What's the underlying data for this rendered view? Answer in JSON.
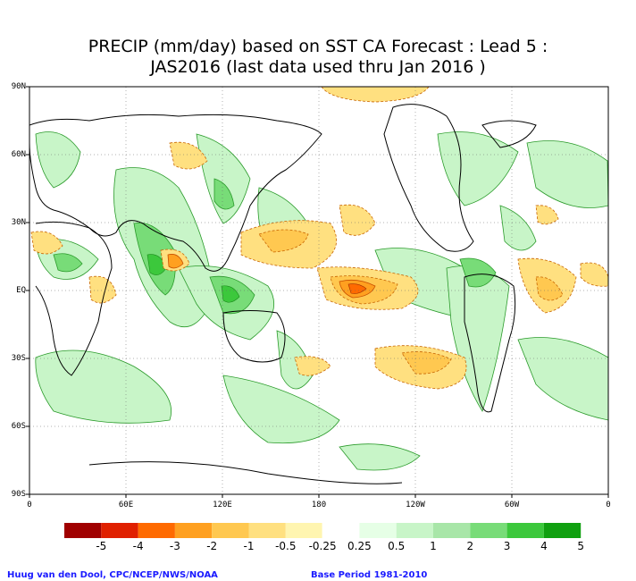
{
  "title": {
    "line1": "PRECIP (mm/day) based on SST CA Forecast : Lead 5 :",
    "line2": "JAS2016 (last data used thru Jan 2016 )"
  },
  "axes": {
    "lat_labels": [
      "90N",
      "60N",
      "30N",
      "EQ",
      "30S",
      "60S",
      "90S"
    ],
    "lon_labels": [
      "0",
      "60E",
      "120E",
      "180",
      "120W",
      "60W",
      "0"
    ]
  },
  "colorbar": {
    "labels": [
      "-5",
      "-4",
      "-3",
      "-2",
      "-1",
      "-0.5",
      "-0.25",
      "0.25",
      "0.5",
      "1",
      "2",
      "3",
      "4",
      "5"
    ],
    "colors": [
      "#a00000",
      "#e02000",
      "#ff6a00",
      "#ffa020",
      "#ffc850",
      "#ffe080",
      "#fff5b0",
      "#ffffff",
      "#e6ffe6",
      "#c8f5c8",
      "#a8e6a8",
      "#78dc78",
      "#3cc83c",
      "#10a010"
    ]
  },
  "footer": {
    "left": "Huug van den Dool, CPC/NCEP/NWS/NOAA",
    "right": "Base Period 1981-2010"
  }
}
